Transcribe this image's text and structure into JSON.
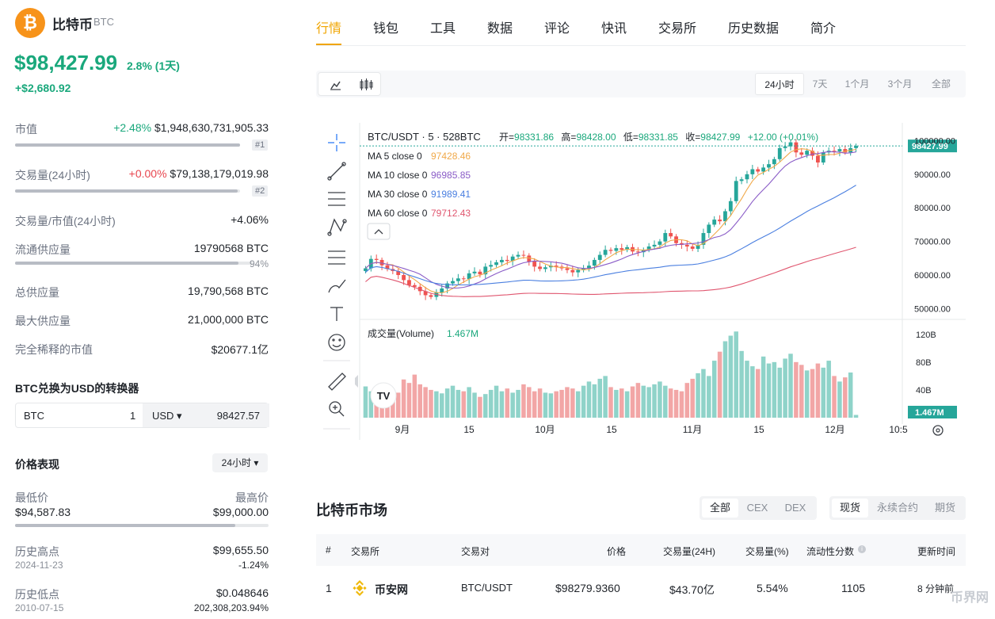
{
  "coin": {
    "logo_glyph": "₿",
    "name": "比特币",
    "symbol": "BTC",
    "price": "$98,427.99",
    "change_pct": "2.8% (1天)",
    "change_abs": "+$2,680.92",
    "accent_color": "#1aa87c",
    "brand_color": "#f7931a"
  },
  "stats": {
    "market_cap": {
      "label": "市值",
      "change": "+2.48%",
      "value": "$1,948,630,731,905.33",
      "rank": "#1",
      "bar_fraction": 1.0
    },
    "volume_24h": {
      "label": "交易量(24小时)",
      "change": "+0.00%",
      "value": "$79,138,179,019.98",
      "rank": "#2",
      "bar_fraction": 0.99
    },
    "vol_mcap": {
      "label": "交易量/市值(24小时)",
      "value": "+4.06%"
    },
    "circulating": {
      "label": "流通供应量",
      "value": "19790568 BTC",
      "pct": "94%",
      "bar_fraction": 0.94
    },
    "total_supply": {
      "label": "总供应量",
      "value": "19,790,568 BTC"
    },
    "max_supply": {
      "label": "最大供应量",
      "value": "21,000,000 BTC"
    },
    "fdv": {
      "label": "完全稀释的市值",
      "value": "$20677.1亿"
    }
  },
  "converter": {
    "title": "BTC兑换为USD的转换器",
    "from_symbol": "BTC",
    "from_amount": "1",
    "to_symbol": "USD ▾",
    "to_amount": "98427.57"
  },
  "performance": {
    "title": "价格表现",
    "period": "24小时 ▾",
    "low_label": "最低价",
    "low_value": "$94,587.83",
    "high_label": "最高价",
    "high_value": "$99,000.00",
    "range_fraction": 0.87,
    "ath_label": "历史高点",
    "ath_value": "$99,655.50",
    "ath_date": "2024-11-23",
    "ath_change": "-1.24%",
    "atl_label": "历史低点",
    "atl_value": "$0.048646",
    "atl_date": "2010-07-15",
    "atl_change": "202,308,203.94%"
  },
  "nav": {
    "tabs": [
      "行情",
      "钱包",
      "工具",
      "数据",
      "评论",
      "快讯",
      "交易所",
      "历史数据",
      "简介"
    ],
    "active_index": 0
  },
  "chart_toolbar": {
    "ranges": [
      "24小时",
      "7天",
      "1个月",
      "3个月",
      "全部"
    ],
    "active_range": 0
  },
  "chart_data": {
    "type": "candlestick",
    "pair_label": "BTC/USDT · 5 · 528BTC",
    "ohlc_header": {
      "open_label": "开=",
      "open": "98331.86",
      "high_label": "高=",
      "high": "98428.00",
      "low_label": "低=",
      "low": "98331.85",
      "close_label": "收=",
      "close": "98427.99",
      "change": "+12.00 (+0.01%)"
    },
    "ma": [
      {
        "name": "MA 5 close 0",
        "value": "97428.46",
        "color": "#f0a94a"
      },
      {
        "name": "MA 10 close 0",
        "value": "96985.85",
        "color": "#8a5cc7"
      },
      {
        "name": "MA 30 close 0",
        "value": "91989.41",
        "color": "#4a7fe0"
      },
      {
        "name": "MA 60 close 0",
        "value": "79712.43",
        "color": "#e0566f"
      }
    ],
    "y_ticks": [
      "100000.00",
      "90000.00",
      "80000.00",
      "70000.00",
      "60000.00",
      "50000.00"
    ],
    "y_tick_values": [
      100000,
      90000,
      80000,
      70000,
      60000,
      50000
    ],
    "ylim": [
      47500,
      102000
    ],
    "last_price_tag": "98427.99",
    "volume_label": "成交量(Volume)",
    "volume_value": "1.467M",
    "volume_ticks": [
      "120B",
      "80B",
      "40B"
    ],
    "volume_tag": "1.467M",
    "x_ticks": [
      "9月",
      "15",
      "10月",
      "15",
      "11月",
      "15",
      "12月",
      "10:5"
    ],
    "closes": [
      62000,
      64800,
      64500,
      62900,
      61800,
      61200,
      60000,
      58500,
      57000,
      56500,
      55200,
      54000,
      53500,
      54800,
      56000,
      57500,
      58200,
      59000,
      58800,
      60500,
      61000,
      60200,
      62500,
      63000,
      63800,
      64500,
      64200,
      65500,
      66000,
      65800,
      64000,
      62500,
      61800,
      62300,
      62800,
      62500,
      62000,
      61500,
      60800,
      61500,
      62000,
      62800,
      64500,
      66000,
      67500,
      67200,
      68000,
      67500,
      68300,
      67000,
      66800,
      67500,
      68500,
      69000,
      70000,
      72500,
      71500,
      69500,
      69000,
      68500,
      67800,
      69000,
      72500,
      75000,
      76500,
      76000,
      79000,
      82000,
      88000,
      88500,
      90000,
      91500,
      90800,
      92000,
      93000,
      94500,
      97800,
      98300,
      99500,
      96500,
      95800,
      97000,
      95500,
      93500,
      96500,
      97000,
      96800,
      97500,
      96500,
      97800,
      98428
    ],
    "volumes": [
      45,
      38,
      42,
      35,
      40,
      32,
      36,
      55,
      50,
      62,
      48,
      44,
      40,
      38,
      35,
      42,
      46,
      40,
      38,
      44,
      36,
      30,
      34,
      40,
      46,
      38,
      42,
      36,
      40,
      48,
      44,
      38,
      42,
      36,
      35,
      38,
      40,
      44,
      42,
      38,
      46,
      52,
      48,
      56,
      60,
      44,
      40,
      42,
      38,
      45,
      50,
      46,
      44,
      48,
      52,
      46,
      42,
      40,
      38,
      50,
      56,
      64,
      70,
      60,
      82,
      95,
      110,
      118,
      124,
      96,
      82,
      74,
      70,
      88,
      78,
      80,
      72,
      85,
      92,
      80,
      76,
      68,
      70,
      78,
      72,
      82,
      60,
      52,
      58,
      65,
      4
    ]
  },
  "market": {
    "title": "比特币市场",
    "filter1": [
      "全部",
      "CEX",
      "DEX"
    ],
    "filter1_active": 0,
    "filter2": [
      "现货",
      "永续合约",
      "期货"
    ],
    "filter2_active": 0,
    "columns": [
      "#",
      "交易所",
      "交易对",
      "价格",
      "交易量(24H)",
      "交易量(%)",
      "流动性分数",
      "更新时间"
    ],
    "rows": [
      {
        "rank": "1",
        "exchange": "币安网",
        "pair": "BTC/USDT",
        "price": "$98279.9360",
        "volume": "$43.70亿",
        "volume_pct": "5.54%",
        "liquidity": "1105",
        "updated": "8 分钟前"
      }
    ]
  },
  "watermark": "币界网"
}
